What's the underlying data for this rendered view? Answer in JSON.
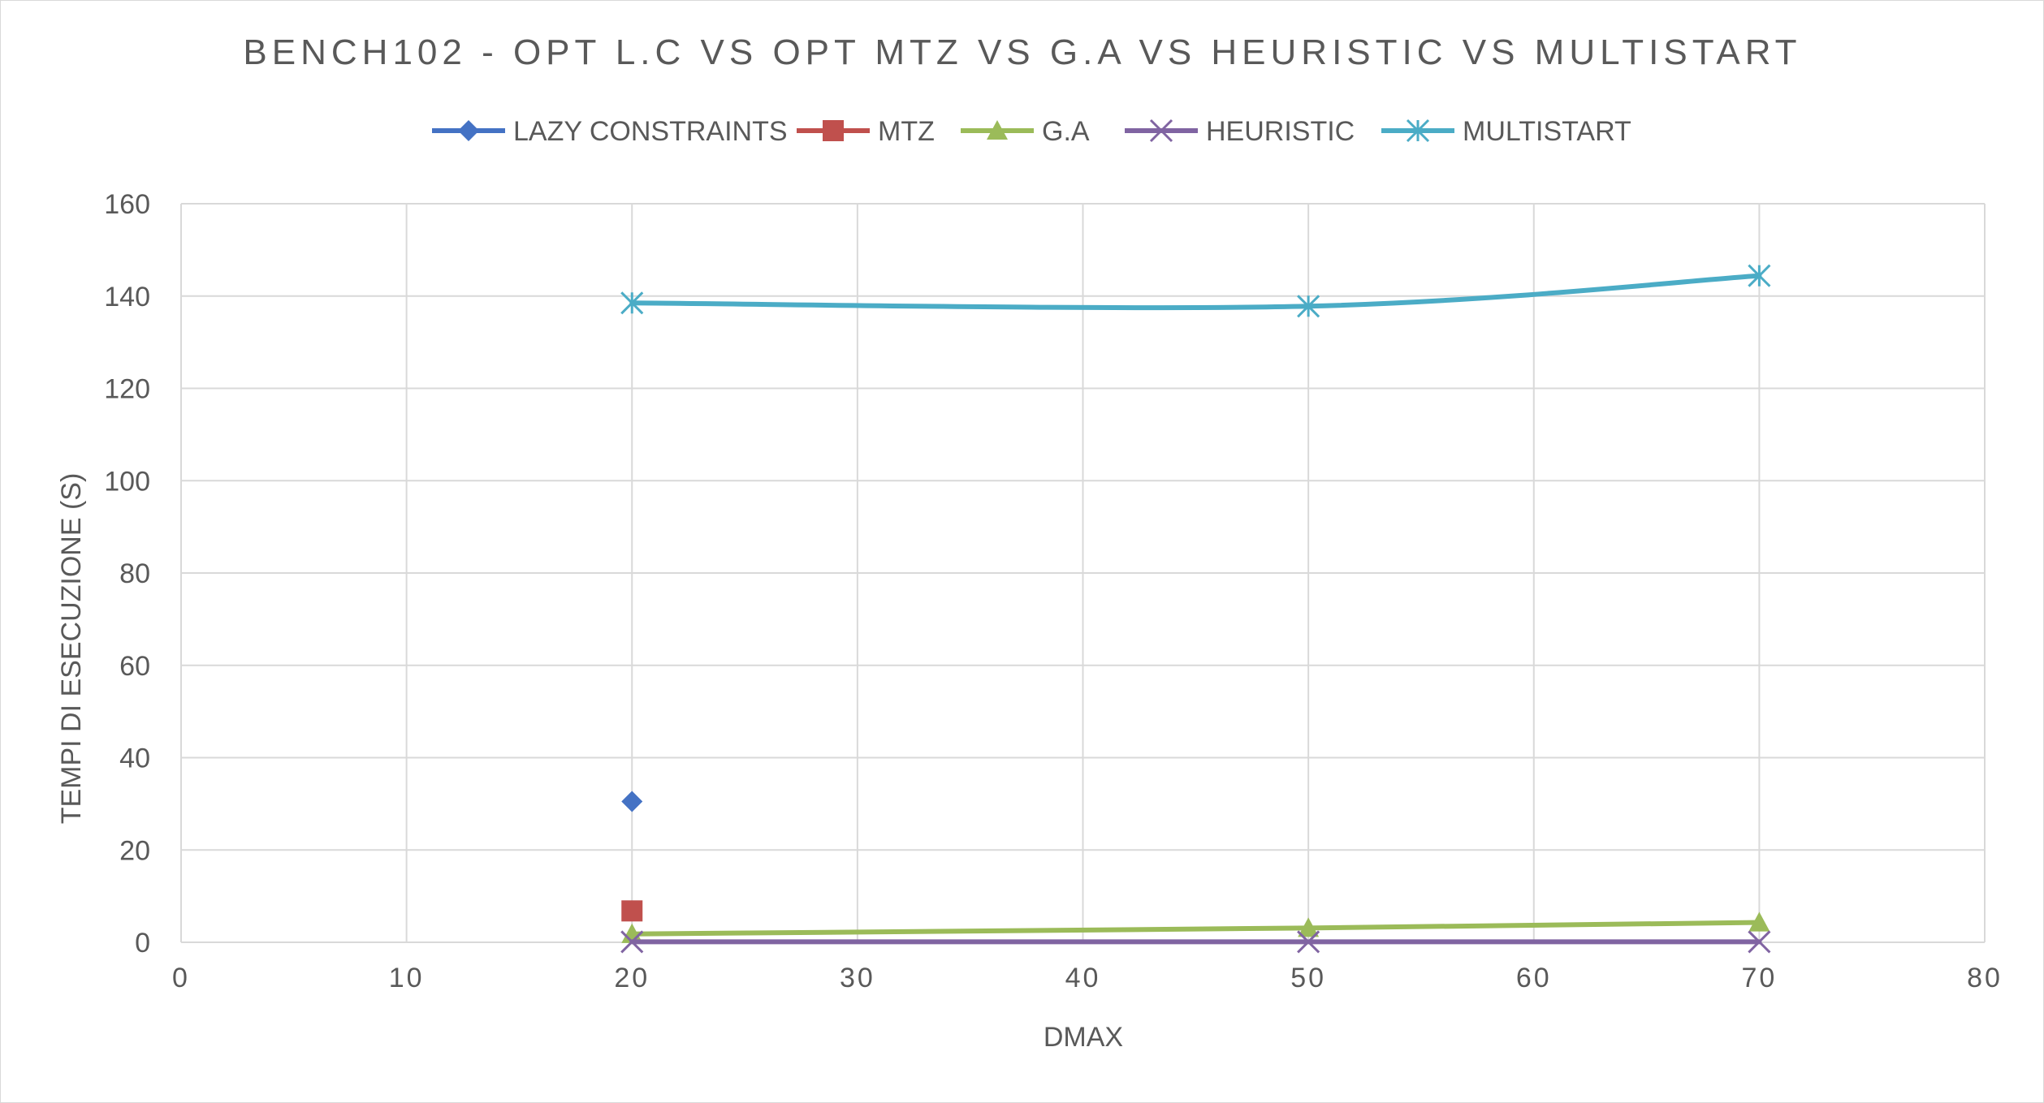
{
  "chart_data": {
    "type": "scatter",
    "title": "BENCH102 - OPT L.C VS OPT MTZ VS G.A VS HEURISTIC VS MULTISTART",
    "xlabel": "DMAX",
    "ylabel": "TEMPI DI ESECUZIONE (S)",
    "xlim": [
      0,
      80
    ],
    "ylim": [
      0,
      160
    ],
    "x_ticks": [
      0,
      10,
      20,
      30,
      40,
      50,
      60,
      70,
      80
    ],
    "y_ticks": [
      0,
      20,
      40,
      60,
      80,
      100,
      120,
      140,
      160
    ],
    "grid": true,
    "legend_position": "top",
    "smooth_lines": true,
    "series": [
      {
        "name": "LAZY CONSTRAINTS",
        "color": "#4472C4",
        "marker": "diamond",
        "x": [
          20
        ],
        "y": [
          30.5
        ]
      },
      {
        "name": "MTZ",
        "color": "#C0504D",
        "marker": "square",
        "x": [
          20
        ],
        "y": [
          6.8
        ]
      },
      {
        "name": "G.A",
        "color": "#9BBB59",
        "marker": "triangle",
        "x": [
          20,
          50,
          70
        ],
        "y": [
          1.8,
          3.1,
          4.3
        ]
      },
      {
        "name": "HEURISTIC",
        "color": "#8064A2",
        "marker": "x",
        "x": [
          20,
          50,
          70
        ],
        "y": [
          0.1,
          0.1,
          0.1
        ]
      },
      {
        "name": "MULTISTART",
        "color": "#4BACC6",
        "marker": "star",
        "x": [
          20,
          50,
          70
        ],
        "y": [
          138.5,
          137.8,
          144.4
        ]
      }
    ]
  }
}
